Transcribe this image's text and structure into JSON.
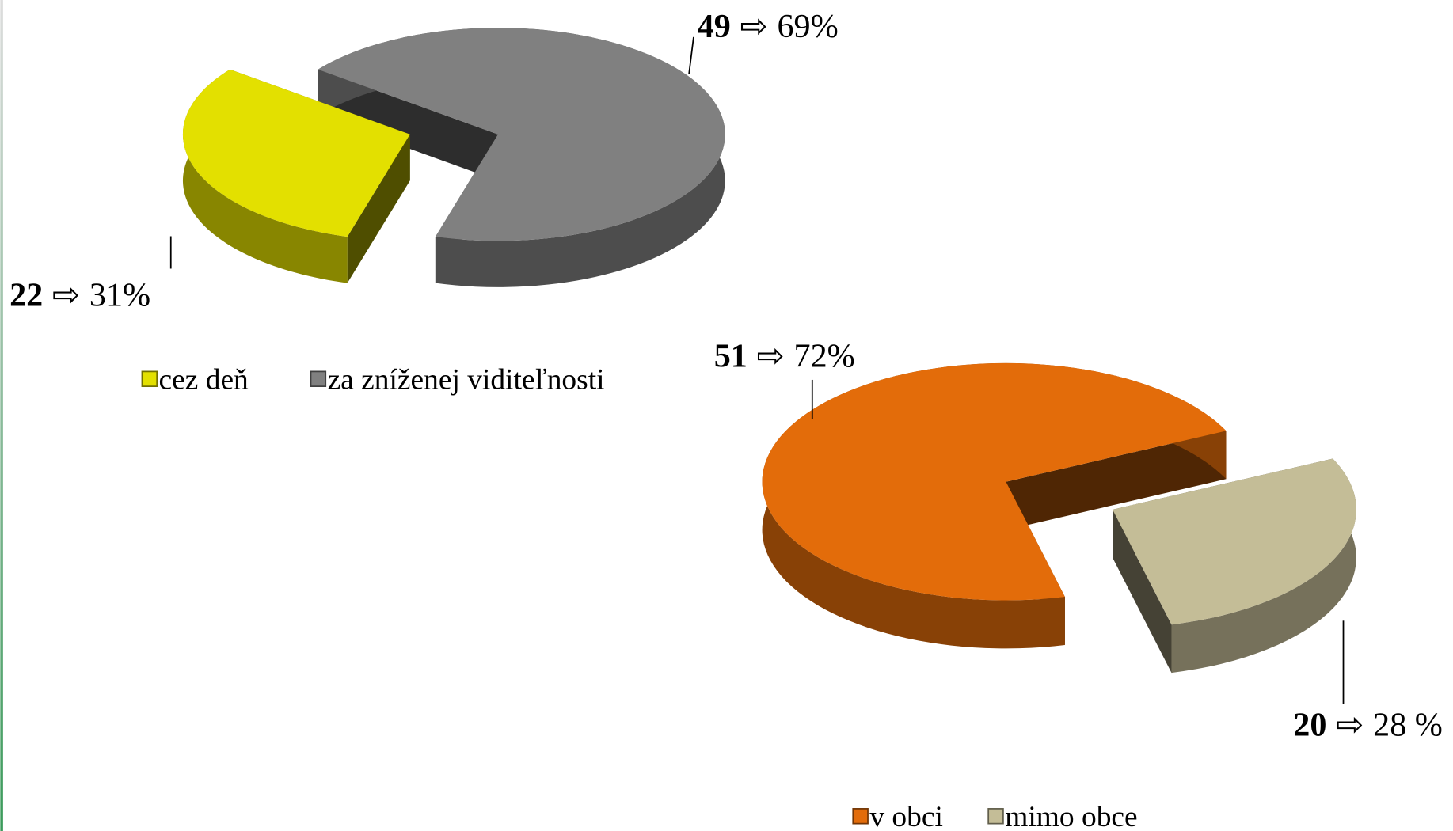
{
  "chart_data": [
    {
      "type": "pie",
      "categories": [
        "cez deň",
        "za zníženej viditeľnosti"
      ],
      "values": [
        22,
        49
      ],
      "percent_labels": [
        "31%",
        "69%"
      ],
      "separator": "⇨",
      "colors": [
        "#e3e000",
        "#808080"
      ]
    },
    {
      "type": "pie",
      "categories": [
        "v obci",
        "mimo obce"
      ],
      "values": [
        51,
        20
      ],
      "percent_labels": [
        "72%",
        "28 %"
      ],
      "separator": "⇨",
      "colors": [
        "#e36c0a",
        "#c4bd97"
      ]
    }
  ]
}
